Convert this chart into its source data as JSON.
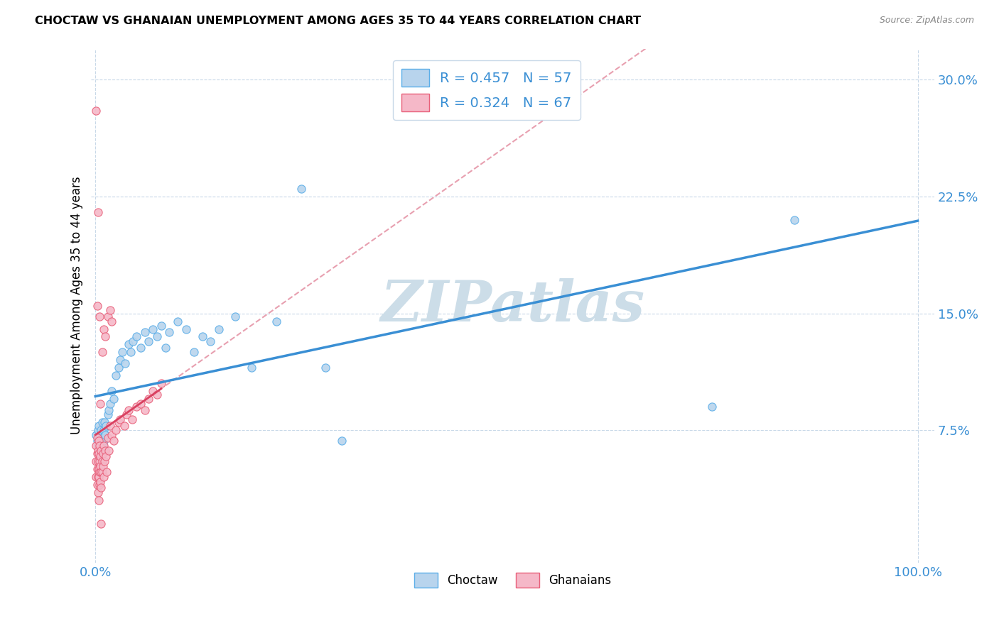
{
  "title": "CHOCTAW VS GHANAIAN UNEMPLOYMENT AMONG AGES 35 TO 44 YEARS CORRELATION CHART",
  "source": "Source: ZipAtlas.com",
  "ylabel_label": "Unemployment Among Ages 35 to 44 years",
  "legend_label1": "Choctaw",
  "legend_label2": "Ghanaians",
  "R1": 0.457,
  "N1": 57,
  "R2": 0.324,
  "N2": 67,
  "color_choctaw_fill": "#b8d4ed",
  "color_choctaw_edge": "#5baee8",
  "color_ghanaian_fill": "#f5b8c8",
  "color_ghanaian_edge": "#e8607a",
  "color_line_choctaw": "#3a8fd4",
  "color_line_ghanaian": "#d94060",
  "color_line_ghanaian_dashed": "#e8a0b0",
  "watermark_text": "ZIPatlas",
  "watermark_color": "#ccdde8",
  "choctaw_x": [
    0.001,
    0.002,
    0.003,
    0.003,
    0.004,
    0.004,
    0.005,
    0.005,
    0.006,
    0.006,
    0.007,
    0.007,
    0.008,
    0.008,
    0.009,
    0.009,
    0.01,
    0.01,
    0.011,
    0.012,
    0.013,
    0.015,
    0.016,
    0.018,
    0.02,
    0.022,
    0.025,
    0.028,
    0.03,
    0.033,
    0.036,
    0.04,
    0.043,
    0.046,
    0.05,
    0.055,
    0.06,
    0.065,
    0.07,
    0.075,
    0.08,
    0.085,
    0.09,
    0.1,
    0.11,
    0.12,
    0.13,
    0.14,
    0.15,
    0.17,
    0.19,
    0.22,
    0.25,
    0.28,
    0.3,
    0.75,
    0.85
  ],
  "choctaw_y": [
    0.072,
    0.068,
    0.065,
    0.075,
    0.06,
    0.078,
    0.07,
    0.065,
    0.072,
    0.058,
    0.068,
    0.075,
    0.062,
    0.08,
    0.07,
    0.065,
    0.075,
    0.068,
    0.08,
    0.072,
    0.078,
    0.085,
    0.088,
    0.092,
    0.1,
    0.095,
    0.11,
    0.115,
    0.12,
    0.125,
    0.118,
    0.13,
    0.125,
    0.132,
    0.135,
    0.128,
    0.138,
    0.132,
    0.14,
    0.135,
    0.142,
    0.128,
    0.138,
    0.145,
    0.14,
    0.125,
    0.135,
    0.132,
    0.14,
    0.148,
    0.115,
    0.145,
    0.23,
    0.115,
    0.068,
    0.09,
    0.21
  ],
  "ghanaian_x": [
    0.001,
    0.001,
    0.001,
    0.002,
    0.002,
    0.002,
    0.002,
    0.003,
    0.003,
    0.003,
    0.003,
    0.004,
    0.004,
    0.004,
    0.004,
    0.005,
    0.005,
    0.005,
    0.005,
    0.006,
    0.006,
    0.006,
    0.007,
    0.007,
    0.007,
    0.008,
    0.008,
    0.009,
    0.009,
    0.01,
    0.01,
    0.011,
    0.012,
    0.013,
    0.014,
    0.015,
    0.016,
    0.018,
    0.02,
    0.022,
    0.025,
    0.028,
    0.03,
    0.035,
    0.038,
    0.04,
    0.045,
    0.05,
    0.055,
    0.06,
    0.065,
    0.07,
    0.075,
    0.08,
    0.01,
    0.012,
    0.015,
    0.018,
    0.02,
    0.008,
    0.005,
    0.003,
    0.002,
    0.001,
    0.006,
    0.004,
    0.007
  ],
  "ghanaian_y": [
    0.055,
    0.045,
    0.065,
    0.05,
    0.04,
    0.06,
    0.07,
    0.045,
    0.055,
    0.062,
    0.035,
    0.05,
    0.045,
    0.06,
    0.068,
    0.04,
    0.055,
    0.048,
    0.065,
    0.042,
    0.058,
    0.052,
    0.048,
    0.062,
    0.038,
    0.055,
    0.048,
    0.06,
    0.052,
    0.045,
    0.065,
    0.055,
    0.062,
    0.058,
    0.048,
    0.07,
    0.062,
    0.078,
    0.072,
    0.068,
    0.075,
    0.08,
    0.082,
    0.078,
    0.085,
    0.088,
    0.082,
    0.09,
    0.092,
    0.088,
    0.095,
    0.1,
    0.098,
    0.105,
    0.14,
    0.135,
    0.148,
    0.152,
    0.145,
    0.125,
    0.148,
    0.215,
    0.155,
    0.28,
    0.092,
    0.03,
    0.015
  ],
  "xlim": [
    -0.005,
    1.02
  ],
  "ylim": [
    -0.01,
    0.32
  ],
  "xticks": [
    0.0,
    1.0
  ],
  "yticks": [
    0.075,
    0.15,
    0.225,
    0.3
  ]
}
